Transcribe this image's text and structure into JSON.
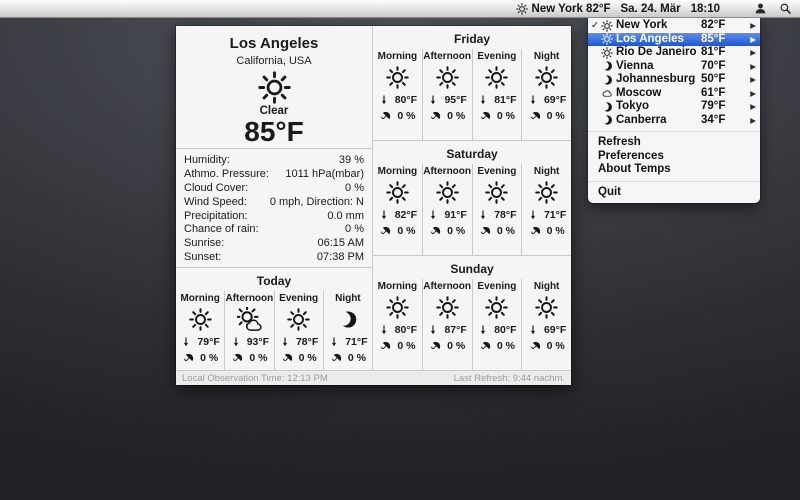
{
  "menu_bar": {
    "status_icon": "sun",
    "status_city_temp": "New York 82°F",
    "status_date": "Sa. 24. Mär",
    "status_time": "18:10",
    "right_icons": [
      "user",
      "search"
    ]
  },
  "dropdown": {
    "highlight_color": "#2f6be4",
    "check_glyph": "✓",
    "submenu_arrow_glyph": "▶",
    "cities": [
      {
        "name": "New York",
        "temp": "82°F",
        "icon": "sun",
        "checked": true,
        "selected": false
      },
      {
        "name": "Los Angeles",
        "temp": "85°F",
        "icon": "sun",
        "checked": false,
        "selected": true
      },
      {
        "name": "Rio De Janeiro",
        "temp": "81°F",
        "icon": "sun",
        "checked": false,
        "selected": false
      },
      {
        "name": "Vienna",
        "temp": "70°F",
        "icon": "moon",
        "checked": false,
        "selected": false
      },
      {
        "name": "Johannesburg",
        "temp": "50°F",
        "icon": "moon",
        "checked": false,
        "selected": false
      },
      {
        "name": "Moscow",
        "temp": "61°F",
        "icon": "cloud",
        "checked": false,
        "selected": false
      },
      {
        "name": "Tokyo",
        "temp": "79°F",
        "icon": "moon",
        "checked": false,
        "selected": false
      },
      {
        "name": "Canberra",
        "temp": "34°F",
        "icon": "moon",
        "checked": false,
        "selected": false
      }
    ],
    "actions": [
      "Refresh",
      "Preferences",
      "About Temps"
    ],
    "quit": "Quit"
  },
  "panel": {
    "city": "Los Angeles",
    "region": "California, USA",
    "condition_icon": "sun",
    "condition": "Clear",
    "current_temp": "85°F",
    "details": [
      {
        "label": "Humidity:",
        "value": "39 %"
      },
      {
        "label": "Athmo. Pressure:",
        "value": "1011 hPa(mbar)"
      },
      {
        "label": "Cloud Cover:",
        "value": "0 %"
      },
      {
        "label": "Wind Speed:",
        "value": "0 mph, Direction: N"
      },
      {
        "label": "Precipitation:",
        "value": "0.0 mm"
      },
      {
        "label": "Chance of rain:",
        "value": "0 %"
      },
      {
        "label": "Sunrise:",
        "value": "06:15 AM"
      },
      {
        "label": "Sunset:",
        "value": "07:38 PM"
      }
    ],
    "sections": [
      {
        "title": "Today",
        "cells": [
          {
            "period": "Morning",
            "icon": "sun",
            "temp": "79°F",
            "rain": "0 %"
          },
          {
            "period": "Afternoon",
            "icon": "sun-cloud",
            "temp": "93°F",
            "rain": "0 %"
          },
          {
            "period": "Evening",
            "icon": "sun",
            "temp": "78°F",
            "rain": "0 %"
          },
          {
            "period": "Night",
            "icon": "moon",
            "temp": "71°F",
            "rain": "0 %"
          }
        ]
      },
      {
        "title": "Friday",
        "cells": [
          {
            "period": "Morning",
            "icon": "sun",
            "temp": "80°F",
            "rain": "0 %"
          },
          {
            "period": "Afternoon",
            "icon": "sun",
            "temp": "95°F",
            "rain": "0 %"
          },
          {
            "period": "Evening",
            "icon": "sun",
            "temp": "81°F",
            "rain": "0 %"
          },
          {
            "period": "Night",
            "icon": "sun",
            "temp": "69°F",
            "rain": "0 %"
          }
        ]
      },
      {
        "title": "Saturday",
        "cells": [
          {
            "period": "Morning",
            "icon": "sun",
            "temp": "82°F",
            "rain": "0 %"
          },
          {
            "period": "Afternoon",
            "icon": "sun",
            "temp": "91°F",
            "rain": "0 %"
          },
          {
            "period": "Evening",
            "icon": "sun",
            "temp": "78°F",
            "rain": "0 %"
          },
          {
            "period": "Night",
            "icon": "sun",
            "temp": "71°F",
            "rain": "0 %"
          }
        ]
      },
      {
        "title": "Sunday",
        "cells": [
          {
            "period": "Morning",
            "icon": "sun",
            "temp": "80°F",
            "rain": "0 %"
          },
          {
            "period": "Afternoon",
            "icon": "sun",
            "temp": "87°F",
            "rain": "0 %"
          },
          {
            "period": "Evening",
            "icon": "sun",
            "temp": "80°F",
            "rain": "0 %"
          },
          {
            "period": "Night",
            "icon": "sun",
            "temp": "69°F",
            "rain": "0 %"
          }
        ]
      }
    ],
    "footer_left": "Local Observation Time: 12:13 PM",
    "footer_right": "Last Refresh: 9:44 nachm."
  }
}
